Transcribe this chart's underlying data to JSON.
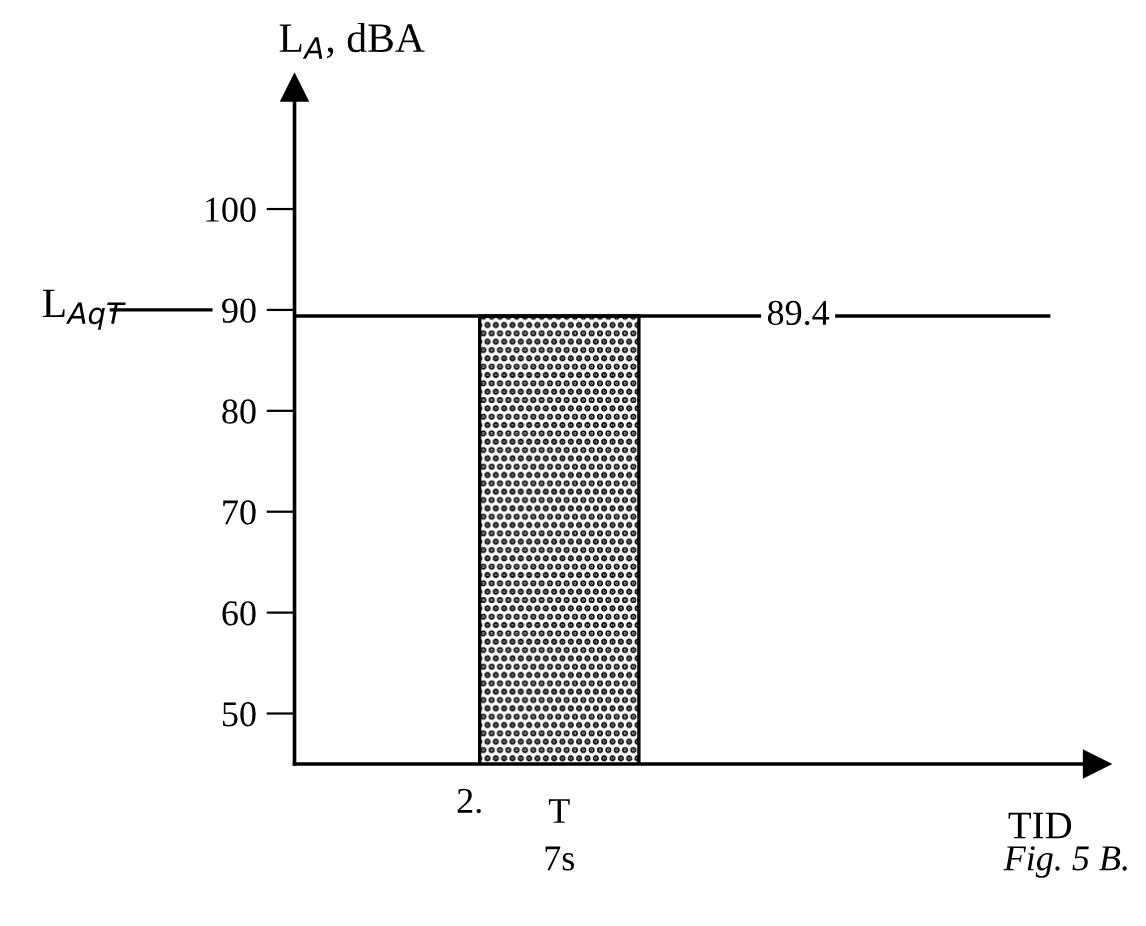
{
  "chart_data": {
    "type": "bar",
    "xlabel": "TID",
    "ylabel": "L$_{A}$, dBA",
    "categories": [
      null
    ],
    "values": [
      89.4
    ],
    "color": "#000000",
    "ylim": [
      45,
      112
    ],
    "yticks": [
      50,
      60,
      70,
      80,
      90,
      100
    ],
    "grid": false,
    "ref_lines": [
      {
        "axis": "y",
        "value": 89.4,
        "label": "89.4",
        "color": "#000000"
      }
    ],
    "annotations": [
      "L$_{AqT}$",
      "2.",
      "T",
      "7s",
      "Fig. 5 B."
    ]
  }
}
